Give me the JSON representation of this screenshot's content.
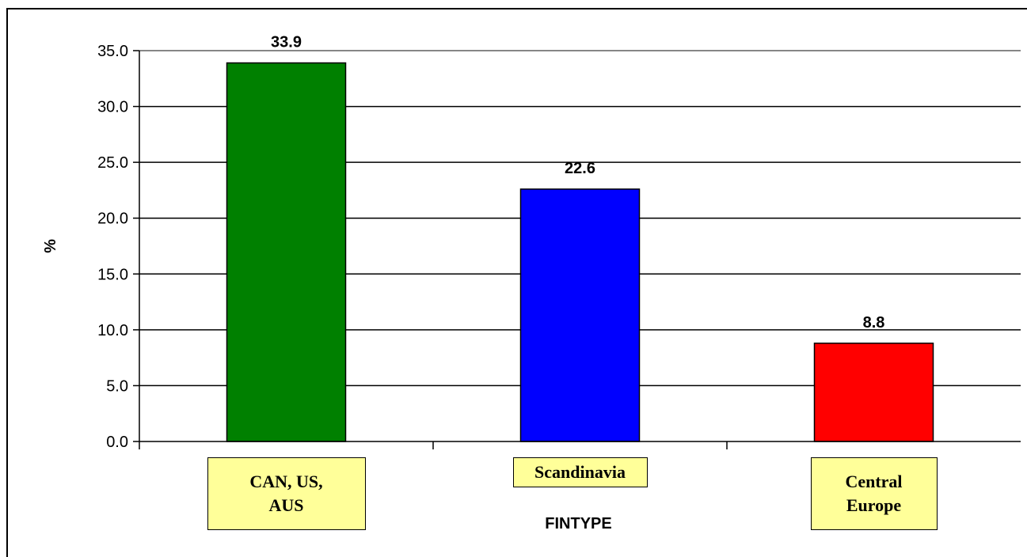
{
  "chart_data": {
    "type": "bar",
    "categories": [
      "CAN, US,\nAUS",
      "Scandinavia",
      "Central\nEurope"
    ],
    "values": [
      33.9,
      22.6,
      8.8
    ],
    "value_labels": [
      "33.9",
      "22.6",
      "8.8"
    ],
    "colors": [
      "#008000",
      "#0000ff",
      "#ff0000"
    ],
    "ylabel": "%",
    "xlabel": "FINTYPE",
    "ylim": [
      0,
      35
    ],
    "yticks": [
      "0.0",
      "5.0",
      "10.0",
      "15.0",
      "20.0",
      "25.0",
      "30.0",
      "35.0"
    ],
    "grid": true,
    "legend": "none"
  }
}
